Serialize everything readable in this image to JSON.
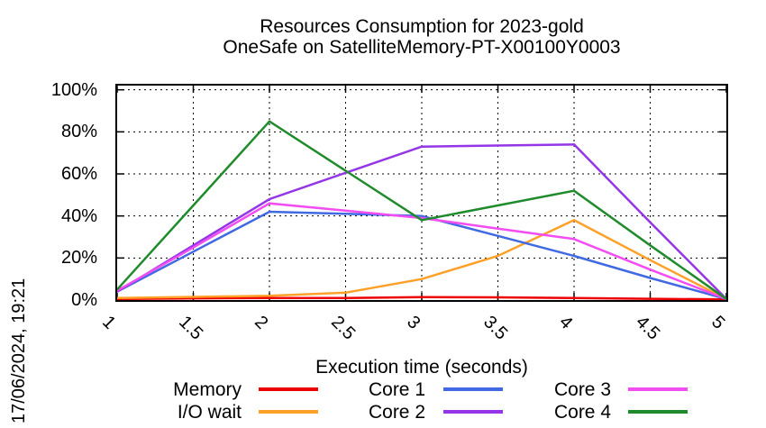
{
  "chart_data": {
    "type": "line",
    "title": "Resources Consumption for 2023-gold",
    "subtitle": "OneSafe on SatelliteMemory-PT-X00100Y0003",
    "xlabel": "Execution time (seconds)",
    "ylabel": "",
    "timestamp": "17/06/2024, 19:21",
    "grid": true,
    "legend_position": "bottom",
    "xlim": [
      1,
      5
    ],
    "ylim": [
      0,
      100
    ],
    "xticks": [
      1,
      1.5,
      2,
      2.5,
      3,
      3.5,
      4,
      4.5,
      5
    ],
    "xtick_labels": [
      "1",
      "1.5",
      "2",
      "2.5",
      "3",
      "3.5",
      "4",
      "4.5",
      "5"
    ],
    "yticks": [
      0,
      20,
      40,
      60,
      80,
      100
    ],
    "ytick_labels": [
      "0%",
      "20%",
      "40%",
      "60%",
      "80%",
      "100%"
    ],
    "x": [
      1,
      1.5,
      2,
      2.5,
      3,
      3.5,
      4,
      4.5,
      5
    ],
    "series": [
      {
        "name": "Memory",
        "color": "#ee0000",
        "values": [
          0.5,
          0.8,
          1,
          1,
          1.4,
          1.3,
          1,
          0.6,
          0.3
        ]
      },
      {
        "name": "I/O wait",
        "color": "#ffa028",
        "values": [
          1,
          1.5,
          2,
          3.5,
          10,
          21,
          38,
          19,
          0.5
        ]
      },
      {
        "name": "Core 1",
        "color": "#4169e1",
        "values": [
          4,
          23,
          42,
          41,
          40,
          30.5,
          21,
          10.5,
          0.5
        ]
      },
      {
        "name": "Core 2",
        "color": "#9436e6",
        "values": [
          4,
          26,
          48,
          60.5,
          73,
          73.5,
          74,
          37,
          0.5
        ]
      },
      {
        "name": "Core 3",
        "color": "#f24df0",
        "values": [
          4.5,
          25,
          46,
          42.5,
          39,
          34,
          29,
          14.5,
          0.5
        ]
      },
      {
        "name": "Core 4",
        "color": "#208b2c",
        "values": [
          5,
          45,
          85,
          61.5,
          38,
          45,
          52,
          26,
          0.5
        ]
      }
    ]
  }
}
